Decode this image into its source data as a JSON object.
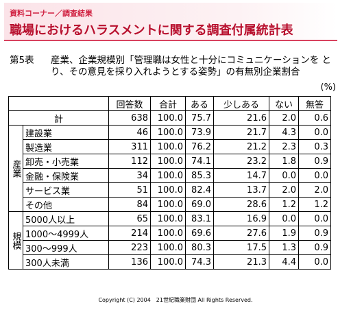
{
  "header": {
    "section": "資料コーナー／調査結果",
    "title": "職場におけるハラスメントに関する調査付属統計表"
  },
  "caption": {
    "number": "第5表",
    "text": "産業、企業規模別「管理職は女性と十分にコミュニケーションを とり、その意見を採り入れようとする姿勢」の有無別企業割合",
    "unit": "(%)"
  },
  "table": {
    "columns": [
      "回答数",
      "合計",
      "ある",
      "少しある",
      "ない",
      "無答"
    ],
    "total": {
      "label": "計",
      "cells": [
        "638",
        "100.0",
        "75.7",
        "21.6",
        "2.0",
        "0.6"
      ]
    },
    "groups": [
      {
        "label": "産業",
        "rows": [
          {
            "label": "建設業",
            "cells": [
              "46",
              "100.0",
              "73.9",
              "21.7",
              "4.3",
              "0.0"
            ]
          },
          {
            "label": "製造業",
            "cells": [
              "311",
              "100.0",
              "76.2",
              "21.2",
              "2.3",
              "0.3"
            ]
          },
          {
            "label": "卸売・小売業",
            "cells": [
              "112",
              "100.0",
              "74.1",
              "23.2",
              "1.8",
              "0.9"
            ]
          },
          {
            "label": "金融・保険業",
            "cells": [
              "34",
              "100.0",
              "85.3",
              "14.7",
              "0.0",
              "0.0"
            ]
          },
          {
            "label": "サービス業",
            "cells": [
              "51",
              "100.0",
              "82.4",
              "13.7",
              "2.0",
              "2.0"
            ]
          },
          {
            "label": "その他",
            "cells": [
              "84",
              "100.0",
              "69.0",
              "28.6",
              "1.2",
              "1.2"
            ]
          }
        ]
      },
      {
        "label": "規模",
        "rows": [
          {
            "label": "5000人以上",
            "cells": [
              "65",
              "100.0",
              "83.1",
              "16.9",
              "0.0",
              "0.0"
            ]
          },
          {
            "label": "1000～4999人",
            "cells": [
              "214",
              "100.0",
              "69.6",
              "27.6",
              "1.9",
              "0.9"
            ]
          },
          {
            "label": "300～999人",
            "cells": [
              "223",
              "100.0",
              "80.3",
              "17.5",
              "1.3",
              "0.9"
            ]
          },
          {
            "label": "300人未満",
            "cells": [
              "136",
              "100.0",
              "74.3",
              "21.3",
              "4.4",
              "0.0"
            ]
          }
        ]
      }
    ]
  },
  "footer": {
    "copyright": "Copyright (C) 2004　21世紀職業財団 All Rights Reserved."
  }
}
